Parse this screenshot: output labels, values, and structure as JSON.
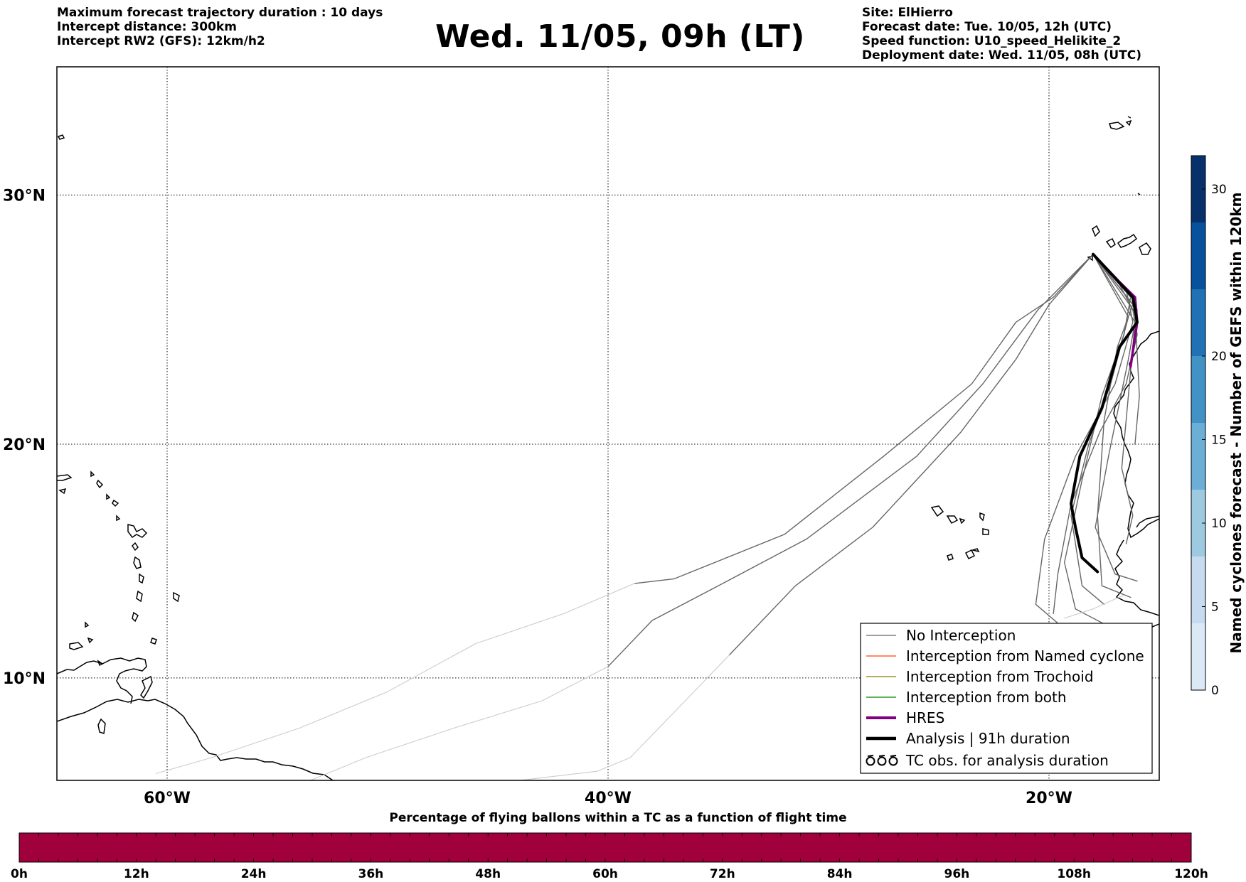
{
  "header": {
    "left_lines": [
      "Maximum forecast trajectory duration : 10 days",
      "Intercept distance: 300km",
      "Intercept RW2 (GFS):  12km/h2"
    ],
    "title": "Wed. 11/05, 09h (LT)",
    "right_lines": [
      "Site: ElHierro",
      "Forecast date: Tue. 10/05, 12h (UTC)",
      "Speed function: U10_speed_Helikite_2",
      "Deployment date: Wed. 11/05, 08h (UTC)"
    ]
  },
  "map": {
    "lon_range": [
      -65,
      -15
    ],
    "lat_range": [
      5.5,
      34.8
    ],
    "lon_gridlines": [
      -60,
      -40,
      -20
    ],
    "lat_gridlines": [
      10,
      20,
      30
    ],
    "lon_labels": [
      "60°W",
      "40°W",
      "20°W"
    ],
    "lat_labels": [
      "10°N",
      "20°N",
      "30°N"
    ],
    "site": {
      "lon": -18.0,
      "lat": 27.7
    }
  },
  "legend": {
    "items": [
      {
        "label": "No Interception",
        "color": "#666666",
        "style": "thin"
      },
      {
        "label": "Interception from Named cyclone",
        "color": "#ff4500",
        "style": "thin"
      },
      {
        "label": "Interception from Trochoid",
        "color": "#808000",
        "style": "thin"
      },
      {
        "label": "Interception from both",
        "color": "#008000",
        "style": "thin"
      },
      {
        "label": "HRES",
        "color": "#800080",
        "style": "thick"
      },
      {
        "label": "Analysis | 91h duration",
        "color": "#000000",
        "style": "thick"
      },
      {
        "label": "TC obs. for analysis duration",
        "color": "#000000",
        "style": "symbol"
      }
    ]
  },
  "colorbar_right": {
    "label": "Named cyclones forecast - Number of GEFS within 120km",
    "min": 0,
    "max": 32,
    "ticks": [
      0,
      5,
      10,
      15,
      20,
      30
    ],
    "tick_labels": [
      "0",
      "5",
      "10",
      "15",
      "20",
      "30"
    ],
    "colors": [
      "#dbe9f6",
      "#c6dbef",
      "#9ecae1",
      "#6baed6",
      "#4292c6",
      "#2171b5",
      "#08519c",
      "#08306b"
    ]
  },
  "colorbar_bottom": {
    "title": "Percentage of flying ballons within a TC as a function of flight time",
    "fill_color": "#a0003c",
    "tick_labels": [
      "0h",
      "12h",
      "24h",
      "36h",
      "48h",
      "60h",
      "72h",
      "84h",
      "96h",
      "108h",
      "120h"
    ]
  },
  "chart_data": {
    "type": "line",
    "xlabel": "",
    "ylabel": "",
    "xlim": [
      -65,
      -15
    ],
    "ylim": [
      5.5,
      34.8
    ],
    "series": [
      {
        "name": "",
        "color": "#666666",
        "width": 1.4,
        "points": [
          [
            -18.0,
            27.7
          ],
          [
            -19.8,
            26.0
          ],
          [
            -21.5,
            25.0
          ],
          [
            -23.5,
            22.5
          ],
          [
            -27.5,
            19.5
          ],
          [
            -32,
            16.2
          ],
          [
            -37,
            14.3
          ],
          [
            -38.8,
            14.1
          ]
        ]
      },
      {
        "name": "",
        "color": "#cccccc",
        "width": 1.1,
        "points": [
          [
            -38.8,
            14.1
          ],
          [
            -42,
            12.8
          ],
          [
            -46,
            11.5
          ],
          [
            -50,
            9.4
          ],
          [
            -54,
            7.8
          ],
          [
            -58,
            6.5
          ],
          [
            -60.5,
            5.8
          ]
        ]
      },
      {
        "name": "",
        "color": "#666666",
        "width": 1.4,
        "points": [
          [
            -18.0,
            27.7
          ],
          [
            -20.5,
            25.5
          ],
          [
            -23,
            22.5
          ],
          [
            -26,
            19.5
          ],
          [
            -31,
            16.0
          ],
          [
            -35,
            14.0
          ],
          [
            -38,
            12.5
          ],
          [
            -40,
            10.5
          ]
        ]
      },
      {
        "name": "",
        "color": "#cccccc",
        "width": 1.1,
        "points": [
          [
            -40,
            10.5
          ],
          [
            -43,
            9.0
          ],
          [
            -47,
            7.8
          ],
          [
            -51,
            6.5
          ],
          [
            -53.5,
            5.5
          ]
        ]
      },
      {
        "name": "",
        "color": "#666666",
        "width": 1.4,
        "points": [
          [
            -18.0,
            27.7
          ],
          [
            -20.0,
            25.7
          ],
          [
            -21.5,
            23.5
          ],
          [
            -24.0,
            20.5
          ],
          [
            -28,
            16.5
          ],
          [
            -31.5,
            14.0
          ],
          [
            -34.5,
            11.0
          ]
        ]
      },
      {
        "name": "",
        "color": "#cccccc",
        "width": 1.1,
        "points": [
          [
            -34.5,
            11.0
          ],
          [
            -37,
            8.5
          ],
          [
            -39,
            6.5
          ],
          [
            -40.5,
            5.9
          ],
          [
            -44,
            5.5
          ]
        ]
      },
      {
        "name": "",
        "color": "#666666",
        "width": 1.4,
        "points": [
          [
            -18.0,
            27.7
          ],
          [
            -16.3,
            26.0
          ],
          [
            -16.6,
            24.5
          ],
          [
            -17.6,
            22.0
          ],
          [
            -18.5,
            18.5
          ],
          [
            -19.3,
            15.0
          ],
          [
            -18.8,
            13.0
          ],
          [
            -17.2,
            12.2
          ]
        ]
      },
      {
        "name": "",
        "color": "#666666",
        "width": 1.4,
        "points": [
          [
            -18.0,
            27.7
          ],
          [
            -16.2,
            25.7
          ],
          [
            -16.9,
            24.0
          ],
          [
            -17.5,
            21.0
          ],
          [
            -17.8,
            17.0
          ],
          [
            -17.6,
            14.0
          ],
          [
            -16.3,
            13.5
          ]
        ]
      },
      {
        "name": "",
        "color": "#666666",
        "width": 1.4,
        "points": [
          [
            -18.0,
            27.7
          ],
          [
            -16.0,
            25.5
          ],
          [
            -16.4,
            23.5
          ],
          [
            -17.3,
            19.5
          ],
          [
            -17.9,
            16.5
          ],
          [
            -17.0,
            14.5
          ],
          [
            -16.0,
            14.2
          ]
        ]
      },
      {
        "name": "",
        "color": "#666666",
        "width": 1.4,
        "points": [
          [
            -18.0,
            27.7
          ],
          [
            -16.4,
            25.2
          ],
          [
            -17.2,
            22.5
          ],
          [
            -18.2,
            20.0
          ],
          [
            -19.0,
            17.0
          ],
          [
            -18.5,
            14.0
          ],
          [
            -17.5,
            13.2
          ]
        ]
      },
      {
        "name": "",
        "color": "#666666",
        "width": 1.4,
        "points": [
          [
            -18.0,
            27.7
          ],
          [
            -16.1,
            25.0
          ],
          [
            -16.3,
            23.0
          ],
          [
            -16.7,
            19.0
          ],
          [
            -16.2,
            17.0
          ],
          [
            -16.5,
            15.8
          ]
        ]
      },
      {
        "name": "",
        "color": "#666666",
        "width": 1.4,
        "points": [
          [
            -18.0,
            27.7
          ],
          [
            -16.5,
            26.3
          ],
          [
            -16.2,
            25.0
          ],
          [
            -17.0,
            22.5
          ],
          [
            -18.8,
            19.5
          ],
          [
            -20.2,
            16.0
          ],
          [
            -20.6,
            13.2
          ],
          [
            -19.5,
            12.3
          ],
          [
            -18.5,
            12.3
          ]
        ]
      },
      {
        "name": "",
        "color": "#666666",
        "width": 1.4,
        "points": [
          [
            -18.0,
            27.7
          ],
          [
            -16.8,
            26.5
          ],
          [
            -16.2,
            25.5
          ],
          [
            -16.0,
            24.5
          ],
          [
            -16.5,
            22.5
          ],
          [
            -17.7,
            20.5
          ],
          [
            -19.0,
            17.5
          ],
          [
            -19.6,
            14.5
          ],
          [
            -19.8,
            12.8
          ]
        ]
      },
      {
        "name": "",
        "color": "#666666",
        "width": 1.4,
        "points": [
          [
            -18.0,
            27.7
          ],
          [
            -16.1,
            25.4
          ],
          [
            -15.9,
            22.0
          ],
          [
            -16.1,
            20.0
          ]
        ]
      },
      {
        "name": "",
        "color": "#cccccc",
        "width": 1.1,
        "points": [
          [
            -18.8,
            12.0
          ],
          [
            -17.5,
            12.2
          ],
          [
            -16.5,
            12.0
          ]
        ]
      },
      {
        "name": "",
        "color": "#cccccc",
        "width": 1.1,
        "points": [
          [
            -19.3,
            12.6
          ],
          [
            -18,
            13.0
          ],
          [
            -16.6,
            13.6
          ]
        ]
      },
      {
        "name": "HRES",
        "color": "#800080",
        "width": 3.5,
        "points": [
          [
            -18.0,
            27.7
          ],
          [
            -16.8,
            26.6
          ],
          [
            -16.1,
            26.0
          ],
          [
            -16.0,
            25.0
          ],
          [
            -16.3,
            23.2
          ]
        ]
      },
      {
        "name": "Analysis | 91h duration",
        "color": "#000000",
        "width": 4.0,
        "points": [
          [
            -18.0,
            27.7
          ],
          [
            -16.2,
            26.0
          ],
          [
            -16.0,
            25.0
          ],
          [
            -16.8,
            24.0
          ],
          [
            -17.6,
            21.5
          ],
          [
            -18.6,
            19.5
          ],
          [
            -19.0,
            17.5
          ],
          [
            -18.8,
            16.5
          ],
          [
            -18.5,
            15.2
          ],
          [
            -17.8,
            14.6
          ]
        ]
      }
    ]
  }
}
